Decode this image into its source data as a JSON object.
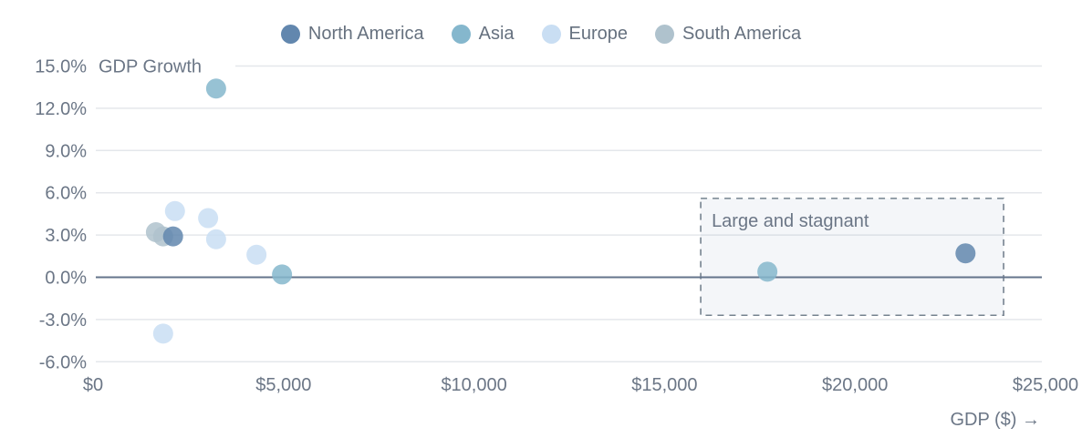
{
  "chart_data": {
    "type": "scatter",
    "title": "GDP Growth",
    "xlabel": "GDP ($) →",
    "xlim": [
      0,
      25000
    ],
    "ylim": [
      -6,
      15
    ],
    "grid": true,
    "legend_position": "top-center",
    "x_ticks": [
      {
        "v": 0,
        "label": "$0"
      },
      {
        "v": 5000,
        "label": "$5,000"
      },
      {
        "v": 10000,
        "label": "$10,000"
      },
      {
        "v": 15000,
        "label": "$15,000"
      },
      {
        "v": 20000,
        "label": "$20,000"
      },
      {
        "v": 25000,
        "label": "$25,000"
      }
    ],
    "y_ticks": [
      {
        "v": 15,
        "label": "15.0%"
      },
      {
        "v": 12,
        "label": "12.0%"
      },
      {
        "v": 9,
        "label": "9.0%"
      },
      {
        "v": 6,
        "label": "6.0%"
      },
      {
        "v": 3,
        "label": "3.0%"
      },
      {
        "v": 0,
        "label": "0.0%"
      },
      {
        "v": -3,
        "label": "-3.0%"
      },
      {
        "v": -6,
        "label": "-6.0%"
      }
    ],
    "series": [
      {
        "name": "North America",
        "color": "#6287ae",
        "points": [
          {
            "x": 2100,
            "y": 2.9
          },
          {
            "x": 22900,
            "y": 1.7
          }
        ]
      },
      {
        "name": "Asia",
        "color": "#85b7cd",
        "points": [
          {
            "x": 3230,
            "y": 13.4
          },
          {
            "x": 4960,
            "y": 0.2
          },
          {
            "x": 17700,
            "y": 0.4
          }
        ]
      },
      {
        "name": "Europe",
        "color": "#c9def3",
        "points": [
          {
            "x": 2150,
            "y": 4.7
          },
          {
            "x": 3020,
            "y": 4.2
          },
          {
            "x": 3230,
            "y": 2.7
          },
          {
            "x": 4290,
            "y": 1.6
          },
          {
            "x": 1840,
            "y": -4.0
          }
        ]
      },
      {
        "name": "South America",
        "color": "#afc2cd",
        "points": [
          {
            "x": 1650,
            "y": 3.2
          },
          {
            "x": 1840,
            "y": 2.9
          }
        ]
      }
    ],
    "annotation": {
      "label": "Large and stagnant",
      "x_range": [
        15950,
        23900
      ],
      "y_range": [
        -2.7,
        5.6
      ]
    },
    "colors": {
      "grid_line": "#e4e7eb",
      "zero_line": "#64748b",
      "axis_text": "#6b7686",
      "annotation_border": "#75828f",
      "annotation_fill": "rgba(106,130,166,0.07)",
      "point_opacity": 0.85
    }
  }
}
